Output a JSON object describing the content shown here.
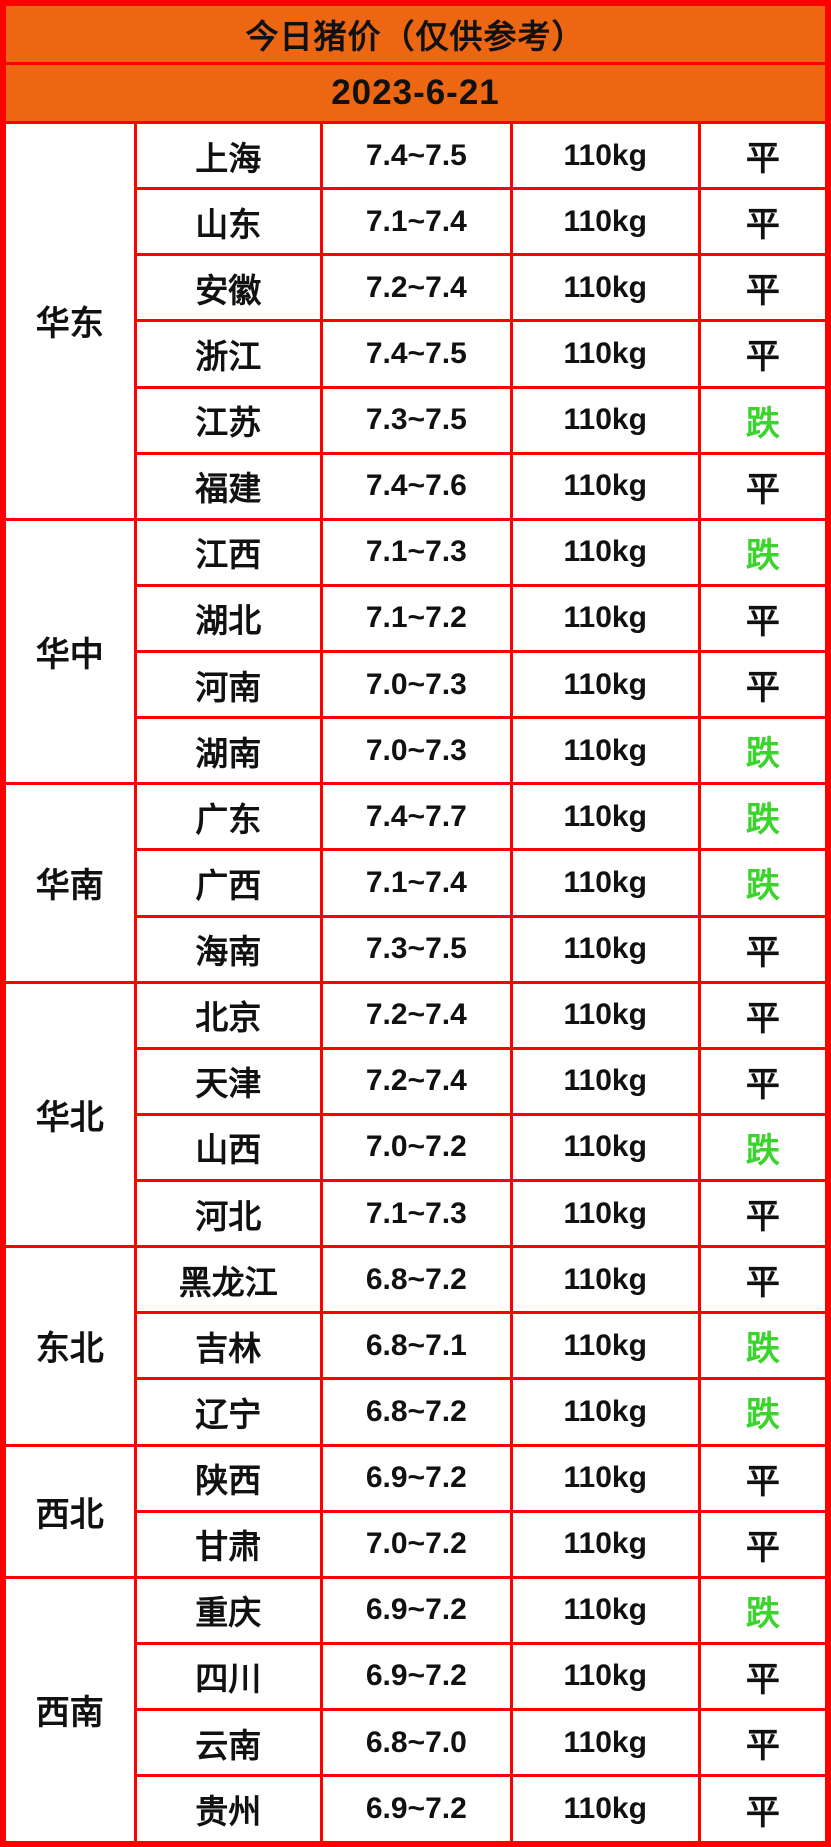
{
  "header": {
    "title": "今日猪价（仅供参考）",
    "date": "2023-6-21"
  },
  "legend": {
    "flat_label": "平",
    "fall_label": "跌"
  },
  "colors": {
    "banner_bg": "#ed6612",
    "grid_red": "#fe0000",
    "text_black": "#111111",
    "fall_green": "#3bd42c",
    "cell_bg": "#ffffff"
  },
  "table": {
    "unit_weight": "110kg",
    "regions": [
      {
        "name": "华东",
        "rows": [
          {
            "province": "上海",
            "price": "7.4~7.5",
            "weight": "110kg",
            "status": "平",
            "trend": "flat"
          },
          {
            "province": "山东",
            "price": "7.1~7.4",
            "weight": "110kg",
            "status": "平",
            "trend": "flat"
          },
          {
            "province": "安徽",
            "price": "7.2~7.4",
            "weight": "110kg",
            "status": "平",
            "trend": "flat"
          },
          {
            "province": "浙江",
            "price": "7.4~7.5",
            "weight": "110kg",
            "status": "平",
            "trend": "flat"
          },
          {
            "province": "江苏",
            "price": "7.3~7.5",
            "weight": "110kg",
            "status": "跌",
            "trend": "fall"
          },
          {
            "province": "福建",
            "price": "7.4~7.6",
            "weight": "110kg",
            "status": "平",
            "trend": "flat"
          }
        ]
      },
      {
        "name": "华中",
        "rows": [
          {
            "province": "江西",
            "price": "7.1~7.3",
            "weight": "110kg",
            "status": "跌",
            "trend": "fall"
          },
          {
            "province": "湖北",
            "price": "7.1~7.2",
            "weight": "110kg",
            "status": "平",
            "trend": "flat"
          },
          {
            "province": "河南",
            "price": "7.0~7.3",
            "weight": "110kg",
            "status": "平",
            "trend": "flat"
          },
          {
            "province": "湖南",
            "price": "7.0~7.3",
            "weight": "110kg",
            "status": "跌",
            "trend": "fall"
          }
        ]
      },
      {
        "name": "华南",
        "rows": [
          {
            "province": "广东",
            "price": "7.4~7.7",
            "weight": "110kg",
            "status": "跌",
            "trend": "fall"
          },
          {
            "province": "广西",
            "price": "7.1~7.4",
            "weight": "110kg",
            "status": "跌",
            "trend": "fall"
          },
          {
            "province": "海南",
            "price": "7.3~7.5",
            "weight": "110kg",
            "status": "平",
            "trend": "flat"
          }
        ]
      },
      {
        "name": "华北",
        "rows": [
          {
            "province": "北京",
            "price": "7.2~7.4",
            "weight": "110kg",
            "status": "平",
            "trend": "flat"
          },
          {
            "province": "天津",
            "price": "7.2~7.4",
            "weight": "110kg",
            "status": "平",
            "trend": "flat"
          },
          {
            "province": "山西",
            "price": "7.0~7.2",
            "weight": "110kg",
            "status": "跌",
            "trend": "fall"
          },
          {
            "province": "河北",
            "price": "7.1~7.3",
            "weight": "110kg",
            "status": "平",
            "trend": "flat"
          }
        ]
      },
      {
        "name": "东北",
        "rows": [
          {
            "province": "黑龙江",
            "price": "6.8~7.2",
            "weight": "110kg",
            "status": "平",
            "trend": "flat"
          },
          {
            "province": "吉林",
            "price": "6.8~7.1",
            "weight": "110kg",
            "status": "跌",
            "trend": "fall"
          },
          {
            "province": "辽宁",
            "price": "6.8~7.2",
            "weight": "110kg",
            "status": "跌",
            "trend": "fall"
          }
        ]
      },
      {
        "name": "西北",
        "rows": [
          {
            "province": "陕西",
            "price": "6.9~7.2",
            "weight": "110kg",
            "status": "平",
            "trend": "flat"
          },
          {
            "province": "甘肃",
            "price": "7.0~7.2",
            "weight": "110kg",
            "status": "平",
            "trend": "flat"
          }
        ]
      },
      {
        "name": "西南",
        "rows": [
          {
            "province": "重庆",
            "price": "6.9~7.2",
            "weight": "110kg",
            "status": "跌",
            "trend": "fall"
          },
          {
            "province": "四川",
            "price": "6.9~7.2",
            "weight": "110kg",
            "status": "平",
            "trend": "flat"
          },
          {
            "province": "云南",
            "price": "6.8~7.0",
            "weight": "110kg",
            "status": "平",
            "trend": "flat"
          },
          {
            "province": "贵州",
            "price": "6.9~7.2",
            "weight": "110kg",
            "status": "平",
            "trend": "flat"
          }
        ]
      }
    ]
  }
}
